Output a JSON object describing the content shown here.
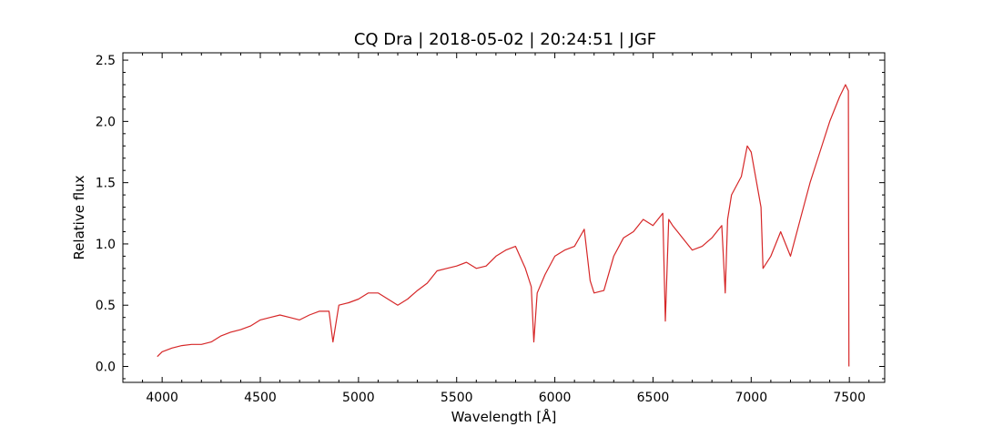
{
  "chart_data": {
    "type": "line",
    "title": "CQ Dra | 2018-05-02 | 20:24:51 | JGF",
    "xlabel": "Wavelength [Å]",
    "ylabel": "Relative flux",
    "xlim": [
      3800,
      7680
    ],
    "ylim": [
      -0.13,
      2.56
    ],
    "xticks": [
      4000,
      4500,
      5000,
      5500,
      6000,
      6500,
      7000,
      7500
    ],
    "xtick_labels": [
      "4000",
      "4500",
      "5000",
      "5500",
      "6000",
      "6500",
      "7000",
      "7500"
    ],
    "yticks": [
      0.0,
      0.5,
      1.0,
      1.5,
      2.0,
      2.5
    ],
    "ytick_labels": [
      "0.0",
      "0.5",
      "1.0",
      "1.5",
      "2.0",
      "2.5"
    ],
    "grid": false,
    "series": [
      {
        "color": "#d62728",
        "x": [
          3975,
          4000,
          4050,
          4100,
          4150,
          4200,
          4250,
          4300,
          4350,
          4400,
          4450,
          4500,
          4550,
          4600,
          4650,
          4700,
          4750,
          4800,
          4850,
          4870,
          4900,
          4950,
          5000,
          5050,
          5100,
          5150,
          5200,
          5250,
          5300,
          5350,
          5400,
          5450,
          5500,
          5550,
          5600,
          5650,
          5700,
          5750,
          5800,
          5850,
          5880,
          5893,
          5910,
          5950,
          6000,
          6050,
          6100,
          6150,
          6180,
          6200,
          6250,
          6300,
          6350,
          6400,
          6450,
          6500,
          6550,
          6563,
          6580,
          6600,
          6650,
          6700,
          6750,
          6800,
          6850,
          6868,
          6880,
          6900,
          6950,
          6980,
          7000,
          7050,
          7060,
          7100,
          7150,
          7200,
          7250,
          7300,
          7350,
          7400,
          7450,
          7480,
          7495,
          7498
        ],
        "y": [
          0.08,
          0.12,
          0.15,
          0.17,
          0.18,
          0.18,
          0.2,
          0.25,
          0.28,
          0.3,
          0.33,
          0.38,
          0.4,
          0.42,
          0.4,
          0.38,
          0.42,
          0.45,
          0.45,
          0.2,
          0.5,
          0.52,
          0.55,
          0.6,
          0.6,
          0.55,
          0.5,
          0.55,
          0.62,
          0.68,
          0.78,
          0.8,
          0.82,
          0.85,
          0.8,
          0.82,
          0.9,
          0.95,
          0.98,
          0.8,
          0.65,
          0.2,
          0.6,
          0.75,
          0.9,
          0.95,
          0.98,
          1.12,
          0.7,
          0.6,
          0.62,
          0.9,
          1.05,
          1.1,
          1.2,
          1.15,
          1.25,
          0.37,
          1.2,
          1.15,
          1.05,
          0.95,
          0.98,
          1.05,
          1.15,
          0.6,
          1.2,
          1.4,
          1.55,
          1.8,
          1.75,
          1.3,
          0.8,
          0.9,
          1.1,
          0.9,
          1.2,
          1.5,
          1.75,
          2.0,
          2.2,
          2.3,
          2.25,
          0.0
        ]
      }
    ]
  }
}
